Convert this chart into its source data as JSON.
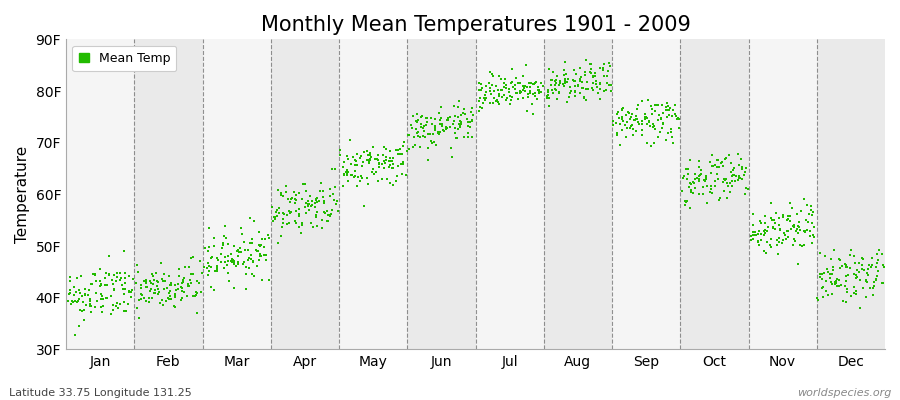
{
  "title": "Monthly Mean Temperatures 1901 - 2009",
  "ylabel": "Temperature",
  "ylim": [
    30,
    90
  ],
  "yticks": [
    30,
    40,
    50,
    60,
    70,
    80,
    90
  ],
  "ytick_labels": [
    "30F",
    "40F",
    "50F",
    "60F",
    "70F",
    "80F",
    "90F"
  ],
  "months": [
    "Jan",
    "Feb",
    "Mar",
    "Apr",
    "May",
    "Jun",
    "Jul",
    "Aug",
    "Sep",
    "Oct",
    "Nov",
    "Dec"
  ],
  "dot_color": "#22bb00",
  "bg_color": "#ffffff",
  "plot_bg_light": "#f5f5f5",
  "plot_bg_dark": "#eaeaea",
  "grid_color": "#666666",
  "title_fontsize": 15,
  "axis_label_fontsize": 11,
  "tick_fontsize": 10,
  "legend_label": "Mean Temp",
  "footnote_left": "Latitude 33.75 Longitude 131.25",
  "footnote_right": "worldspecies.org",
  "n_years": 109,
  "mean_temps_F": [
    40.0,
    41.0,
    47.5,
    57.0,
    65.0,
    72.0,
    79.5,
    80.5,
    73.5,
    62.5,
    52.5,
    43.5
  ],
  "std_temps_F": [
    2.8,
    2.5,
    2.5,
    2.5,
    2.2,
    2.0,
    1.8,
    1.8,
    2.2,
    2.5,
    2.5,
    2.5
  ],
  "trend_per_century_F": [
    1.5,
    1.5,
    1.5,
    1.5,
    1.5,
    1.5,
    1.5,
    1.5,
    1.5,
    1.5,
    1.5,
    1.5
  ]
}
